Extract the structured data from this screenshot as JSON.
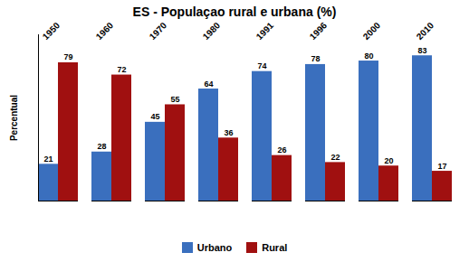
{
  "chart_data": {
    "type": "bar",
    "title": "ES - Populaçao rural e urbana (%)",
    "ylabel": "Percentual",
    "categories": [
      "1950",
      "1960",
      "1970",
      "1980",
      "1991",
      "1996",
      "2000",
      "2010"
    ],
    "series": [
      {
        "name": "Urbano",
        "color": "#3a6fbe",
        "values": [
          21,
          28,
          45,
          64,
          74,
          78,
          80,
          83
        ]
      },
      {
        "name": "Rural",
        "color": "#a01010",
        "values": [
          79,
          72,
          55,
          36,
          26,
          22,
          20,
          17
        ]
      }
    ],
    "ylim": [
      0,
      95
    ],
    "yticks": [],
    "tick_labels": "x",
    "data_labels": true,
    "legend": "bottom",
    "grid": false
  }
}
